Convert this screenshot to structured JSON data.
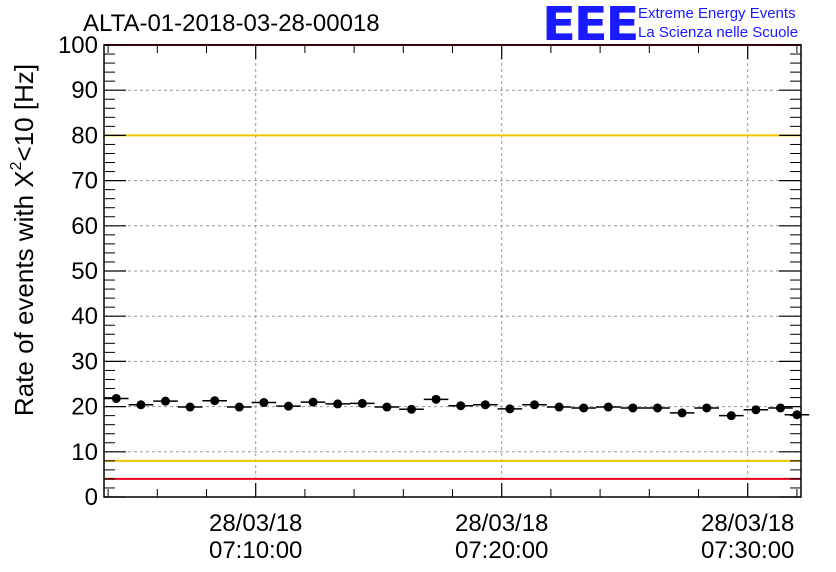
{
  "header": {
    "title": "ALTA-01-2018-03-28-00018",
    "logo_text": "EEE",
    "brand_line1": "Extreme Energy Events",
    "brand_line2": "La Scienza nelle Scuole"
  },
  "colors": {
    "brand": "#1a1aff",
    "data": "#000000",
    "warn_line": "#f5c400",
    "limit_line": "#e8001c",
    "grid": "#9a9a9a"
  },
  "chart_data": {
    "type": "scatter",
    "title": "ALTA-01-2018-03-28-00018",
    "ylabel": "Rate of events with X²<10 [Hz]",
    "ylabel_main": "Rate of events with X",
    "ylabel_sup": "2",
    "ylabel_tail": "<10 [Hz]",
    "ylim": [
      0,
      100
    ],
    "yticks": [
      0,
      10,
      20,
      30,
      40,
      50,
      60,
      70,
      80,
      90,
      100
    ],
    "xlim": [
      "07:03:50",
      "07:32:10"
    ],
    "xticks": [
      {
        "date": "28/03/18",
        "time": "07:10:00",
        "t": "07:10:00"
      },
      {
        "date": "28/03/18",
        "time": "07:20:00",
        "t": "07:20:00"
      },
      {
        "date": "28/03/18",
        "time": "07:30:00",
        "t": "07:30:00"
      }
    ],
    "grid": true,
    "reference_lines": [
      {
        "y": 100,
        "color": "#e8001c"
      },
      {
        "y": 80,
        "color": "#f5c400"
      },
      {
        "y": 8,
        "color": "#f5c400"
      },
      {
        "y": 4,
        "color": "#e8001c"
      }
    ],
    "series": [
      {
        "x": [
          "07:04:20",
          "07:05:20",
          "07:06:20",
          "07:07:20",
          "07:08:20",
          "07:09:20",
          "07:10:20",
          "07:11:20",
          "07:12:20",
          "07:13:20",
          "07:14:20",
          "07:15:20",
          "07:16:20",
          "07:17:20",
          "07:18:20",
          "07:19:20",
          "07:20:20",
          "07:21:20",
          "07:22:20",
          "07:23:20",
          "07:24:20",
          "07:25:20",
          "07:26:20",
          "07:27:20",
          "07:28:20",
          "07:29:20",
          "07:30:20",
          "07:31:20",
          "07:32:00"
        ],
        "y": [
          21.8,
          20.4,
          21.2,
          19.9,
          21.3,
          19.9,
          20.9,
          20.1,
          21.0,
          20.6,
          20.7,
          19.9,
          19.4,
          21.6,
          20.2,
          20.4,
          19.5,
          20.4,
          19.9,
          19.7,
          19.9,
          19.7,
          19.7,
          18.6,
          19.7,
          18.0,
          19.3,
          19.7,
          18.2
        ],
        "xerr_seconds": 30
      }
    ]
  }
}
